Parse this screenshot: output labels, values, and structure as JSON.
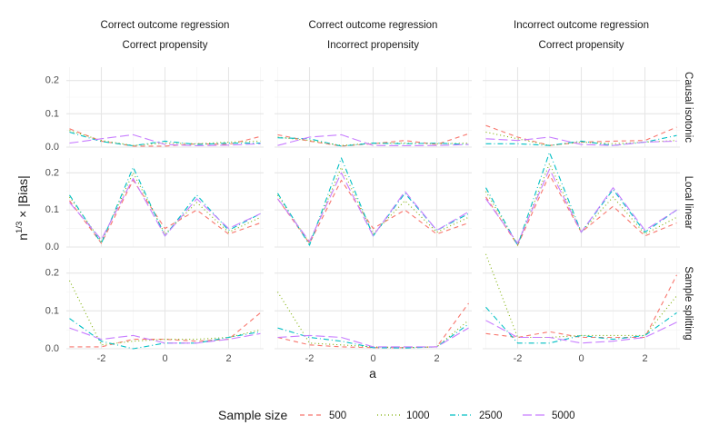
{
  "chart_data": {
    "type": "line",
    "facet_columns": [
      [
        "Correct outcome regression",
        "Correct propensity"
      ],
      [
        "Correct outcome regression",
        "Incorrect propensity"
      ],
      [
        "Incorrect outcome regression",
        "Correct propensity"
      ]
    ],
    "facet_rows": [
      "Causal isotonic",
      "Local linear",
      "Sample splitting"
    ],
    "xlabel": "a",
    "ylabel": "n^(1/3) × |Bias|",
    "ylabel_parts": {
      "base": "n",
      "exponent": "1/3",
      "rest": " × |Bias|"
    },
    "xlim": [
      -3.1,
      3.1
    ],
    "ylim": [
      0,
      0.24
    ],
    "x_ticks": [
      -2,
      0,
      2
    ],
    "x_tick_labels": [
      "-2",
      "0",
      "2"
    ],
    "y_ticks": [
      0,
      0.1,
      0.2
    ],
    "y_tick_labels": [
      "0.0",
      "0.1",
      "0.2"
    ],
    "grid": true,
    "legend_title": "Sample size",
    "legend_position": "bottom",
    "x": [
      -3,
      -2,
      -1,
      0,
      1,
      2,
      3
    ],
    "series": [
      {
        "name": "500",
        "color": "#F8766D",
        "dash": "dashed"
      },
      {
        "name": "1000",
        "color": "#7CAE00",
        "dash": "dotted"
      },
      {
        "name": "2500",
        "color": "#00BFC4",
        "dash": "dotdash"
      },
      {
        "name": "5000",
        "color": "#C77CFF",
        "dash": "longdash"
      }
    ],
    "panels": [
      [
        [
          [
            0.055,
            0.018,
            0.003,
            0.003,
            0.01,
            0.008,
            0.032
          ],
          [
            0.05,
            0.02,
            0.005,
            0.012,
            0.01,
            0.015,
            0.018
          ],
          [
            0.045,
            0.017,
            0.004,
            0.018,
            0.008,
            0.012,
            0.012
          ],
          [
            0.012,
            0.025,
            0.037,
            0.008,
            0.004,
            0.006,
            0.01
          ]
        ],
        [
          [
            0.125,
            0.01,
            0.18,
            0.05,
            0.1,
            0.035,
            0.065
          ],
          [
            0.135,
            0.015,
            0.2,
            0.035,
            0.12,
            0.04,
            0.08
          ],
          [
            0.14,
            0.01,
            0.215,
            0.03,
            0.14,
            0.045,
            0.09
          ],
          [
            0.12,
            0.02,
            0.185,
            0.03,
            0.13,
            0.05,
            0.09
          ]
        ],
        [
          [
            0.005,
            0.005,
            0.025,
            0.025,
            0.02,
            0.025,
            0.095
          ],
          [
            0.18,
            0.01,
            0.02,
            0.025,
            0.025,
            0.03,
            0.05
          ],
          [
            0.08,
            0.02,
            0.0,
            0.015,
            0.015,
            0.03,
            0.045
          ],
          [
            0.055,
            0.025,
            0.035,
            0.015,
            0.015,
            0.025,
            0.04
          ]
        ]
      ],
      [
        [
          [
            0.037,
            0.018,
            0.003,
            0.01,
            0.02,
            0.008,
            0.04
          ],
          [
            0.03,
            0.02,
            0.005,
            0.012,
            0.012,
            0.01,
            0.012
          ],
          [
            0.028,
            0.025,
            0.003,
            0.012,
            0.01,
            0.012,
            0.008
          ],
          [
            0.005,
            0.03,
            0.037,
            0.005,
            0.004,
            0.005,
            0.008
          ]
        ],
        [
          [
            0.13,
            0.01,
            0.18,
            0.05,
            0.1,
            0.035,
            0.065
          ],
          [
            0.14,
            0.01,
            0.215,
            0.035,
            0.125,
            0.04,
            0.08
          ],
          [
            0.145,
            0.005,
            0.24,
            0.03,
            0.145,
            0.045,
            0.09
          ],
          [
            0.13,
            0.015,
            0.2,
            0.03,
            0.15,
            0.045,
            0.095
          ]
        ],
        [
          [
            0.03,
            0.01,
            0.005,
            0.003,
            0.003,
            0.005,
            0.12
          ],
          [
            0.15,
            0.015,
            0.01,
            0.005,
            0.003,
            0.005,
            0.075
          ],
          [
            0.055,
            0.03,
            0.02,
            0.003,
            0.002,
            0.005,
            0.065
          ],
          [
            0.03,
            0.035,
            0.03,
            0.005,
            0.005,
            0.005,
            0.055
          ]
        ]
      ],
      [
        [
          [
            0.065,
            0.03,
            0.005,
            0.015,
            0.018,
            0.02,
            0.06
          ],
          [
            0.045,
            0.025,
            0.005,
            0.015,
            0.01,
            0.015,
            0.02
          ],
          [
            0.01,
            0.01,
            0.005,
            0.018,
            0.005,
            0.015,
            0.035
          ],
          [
            0.025,
            0.02,
            0.03,
            0.008,
            0.005,
            0.015,
            0.018
          ]
        ],
        [
          [
            0.135,
            0.005,
            0.195,
            0.04,
            0.11,
            0.03,
            0.065
          ],
          [
            0.15,
            0.005,
            0.225,
            0.04,
            0.135,
            0.035,
            0.08
          ],
          [
            0.16,
            0.005,
            0.255,
            0.04,
            0.155,
            0.04,
            0.1
          ],
          [
            0.13,
            0.01,
            0.21,
            0.04,
            0.16,
            0.045,
            0.1
          ]
        ],
        [
          [
            0.04,
            0.03,
            0.045,
            0.03,
            0.03,
            0.03,
            0.195
          ],
          [
            0.25,
            0.03,
            0.03,
            0.035,
            0.035,
            0.035,
            0.14
          ],
          [
            0.11,
            0.015,
            0.015,
            0.035,
            0.025,
            0.035,
            0.095
          ],
          [
            0.075,
            0.03,
            0.03,
            0.015,
            0.02,
            0.03,
            0.07
          ]
        ]
      ]
    ]
  }
}
